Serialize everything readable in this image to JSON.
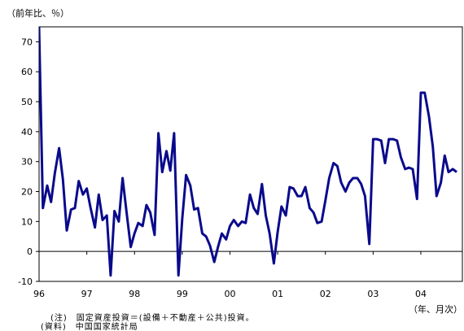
{
  "chart_data": {
    "type": "line",
    "title": "",
    "ylabel": "（前年比、％）",
    "xlabel": "（年、月次）",
    "ylim": [
      -10,
      75
    ],
    "yticks": [
      -10,
      0,
      10,
      20,
      30,
      40,
      50,
      60,
      70
    ],
    "xlim": [
      1996.0,
      2004.87
    ],
    "xticks": [
      {
        "label": "96",
        "x": 1996.0
      },
      {
        "label": "97",
        "x": 1997.0
      },
      {
        "label": "98",
        "x": 1998.0
      },
      {
        "label": "99",
        "x": 1999.0
      },
      {
        "label": "00",
        "x": 2000.0
      },
      {
        "label": "01",
        "x": 2001.0
      },
      {
        "label": "02",
        "x": 2002.0
      },
      {
        "label": "03",
        "x": 2003.0
      },
      {
        "label": "04",
        "x": 2004.0
      }
    ],
    "grid": false,
    "series": [
      {
        "color": "#0a0a8c",
        "x": [
          1996.0,
          1996.08,
          1996.17,
          1996.25,
          1996.33,
          1996.42,
          1996.5,
          1996.58,
          1996.67,
          1996.75,
          1996.83,
          1996.92,
          1997.0,
          1997.08,
          1997.17,
          1997.25,
          1997.33,
          1997.42,
          1997.5,
          1997.58,
          1997.67,
          1997.75,
          1997.83,
          1997.92,
          1998.0,
          1998.08,
          1998.17,
          1998.25,
          1998.33,
          1998.42,
          1998.5,
          1998.58,
          1998.67,
          1998.75,
          1998.83,
          1998.92,
          1999.0,
          1999.08,
          1999.17,
          1999.25,
          1999.33,
          1999.42,
          1999.5,
          1999.58,
          1999.67,
          1999.75,
          1999.83,
          1999.92,
          2000.0,
          2000.08,
          2000.17,
          2000.25,
          2000.33,
          2000.42,
          2000.5,
          2000.58,
          2000.67,
          2000.75,
          2000.83,
          2000.92,
          2001.0,
          2001.08,
          2001.17,
          2001.25,
          2001.33,
          2001.42,
          2001.5,
          2001.58,
          2001.67,
          2001.75,
          2001.83,
          2001.92,
          2002.0,
          2002.08,
          2002.17,
          2002.25,
          2002.33,
          2002.42,
          2002.5,
          2002.58,
          2002.67,
          2002.75,
          2002.83,
          2002.92,
          2003.0,
          2003.08,
          2003.17,
          2003.25,
          2003.33,
          2003.42,
          2003.5,
          2003.58,
          2003.67,
          2003.75,
          2003.83,
          2003.92,
          2004.0,
          2004.08,
          2004.17,
          2004.25,
          2004.33,
          2004.42,
          2004.5,
          2004.58,
          2004.67,
          2004.75
        ],
        "y": [
          75,
          14.5,
          22,
          16.5,
          26,
          34.5,
          24,
          7,
          14,
          14.5,
          23.5,
          19,
          21,
          14.5,
          8,
          19,
          10.5,
          12,
          -8,
          13.5,
          10,
          24.5,
          13.5,
          1.5,
          6,
          9.5,
          8.5,
          15.5,
          13,
          5.5,
          39.5,
          26.5,
          33.5,
          27,
          39.5,
          -8,
          11,
          25.5,
          22,
          14,
          14.5,
          6,
          5,
          2,
          -3.5,
          1.5,
          6,
          4,
          8.5,
          10.5,
          8.5,
          10,
          9.5,
          19,
          14.5,
          12.5,
          22.5,
          12,
          6,
          -4,
          6.5,
          15,
          12,
          21.5,
          21,
          18.5,
          18.5,
          21.5,
          14.5,
          13,
          9.5,
          10,
          17,
          24.5,
          29.5,
          28.5,
          23,
          20,
          23,
          24.5,
          24.5,
          22.5,
          18.5,
          2.5,
          37.5,
          37.5,
          37,
          29.5,
          37.5,
          37.5,
          37,
          31.5,
          27.5,
          28,
          27.5,
          17.5,
          53,
          53,
          45,
          35,
          18.5,
          23,
          32,
          26.5,
          27.5,
          26.5
        ]
      }
    ]
  },
  "notes": {
    "line1": "(注)　固定資産投資＝(設備＋不動産＋公共)投資。",
    "line2": "(資料)　中国国家統計局"
  }
}
